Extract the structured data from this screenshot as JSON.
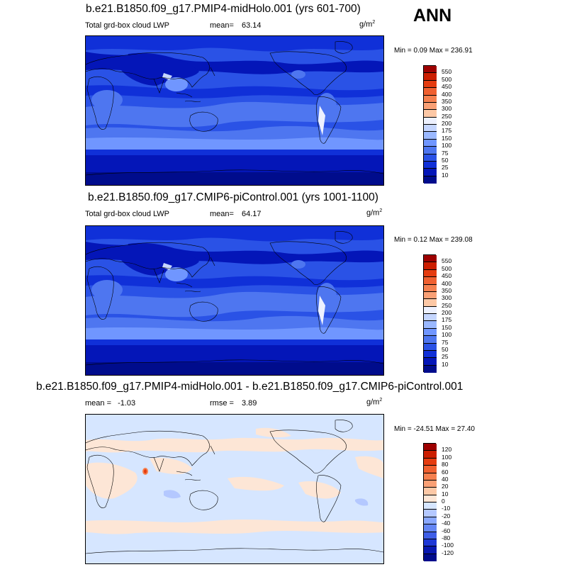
{
  "season": "ANN",
  "panels": [
    {
      "title": "b.e21.B1850.f09_g17.PMIP4-midHolo.001 (yrs 601-700)",
      "left_label": "Total grd-box cloud LWP",
      "stat_label": "mean=",
      "stat_value": "63.14",
      "units": "g/m",
      "units_exp": "2",
      "minmax": "Min =   0.09 Max = 236.91",
      "levels": [
        "550",
        "500",
        "450",
        "400",
        "350",
        "300",
        "250",
        "200",
        "175",
        "150",
        "100",
        "75",
        "50",
        "25",
        "10"
      ],
      "colors": [
        "#9e0000",
        "#cc1e00",
        "#e53c10",
        "#f06030",
        "#f5804f",
        "#f9a075",
        "#fcc8a6",
        "#edf1ff",
        "#c5d6ff",
        "#9ab8ff",
        "#7096ff",
        "#4e76f0",
        "#2a52e6",
        "#1030d8",
        "#0416b8",
        "#000c8c"
      ]
    },
    {
      "title": "b.e21.B1850.f09_g17.CMIP6-piControl.001 (yrs 1001-1100)",
      "left_label": "Total grd-box cloud LWP",
      "stat_label": "mean=",
      "stat_value": "64.17",
      "units": "g/m",
      "units_exp": "2",
      "minmax": "Min =   0.12 Max = 239.08",
      "levels": [
        "550",
        "500",
        "450",
        "400",
        "350",
        "300",
        "250",
        "200",
        "175",
        "150",
        "100",
        "75",
        "50",
        "25",
        "10"
      ],
      "colors": [
        "#9e0000",
        "#cc1e00",
        "#e53c10",
        "#f06030",
        "#f5804f",
        "#f9a075",
        "#fcc8a6",
        "#edf1ff",
        "#c5d6ff",
        "#9ab8ff",
        "#7096ff",
        "#4e76f0",
        "#2a52e6",
        "#1030d8",
        "#0416b8",
        "#000c8c"
      ]
    },
    {
      "title": "b.e21.B1850.f09_g17.PMIP4-midHolo.001 - b.e21.B1850.f09_g17.CMIP6-piControl.001",
      "left_label": "mean =",
      "left_value": "-1.03",
      "stat_label": "rmse =",
      "stat_value": "3.89",
      "units": "g/m",
      "units_exp": "2",
      "minmax": "Min = -24.51 Max =  27.40",
      "levels": [
        "120",
        "100",
        "80",
        "60",
        "40",
        "20",
        "10",
        "0",
        "-10",
        "-20",
        "-40",
        "-60",
        "-80",
        "-100",
        "-120"
      ],
      "colors": [
        "#9e0000",
        "#cc1e00",
        "#e53c10",
        "#f06030",
        "#f5804f",
        "#f9a075",
        "#fcc8a6",
        "#fde6d6",
        "#d6e6ff",
        "#b4c8ff",
        "#8aa8ff",
        "#6486f4",
        "#3e5ee8",
        "#1e38d6",
        "#0818b0",
        "#000c8c"
      ]
    }
  ]
}
